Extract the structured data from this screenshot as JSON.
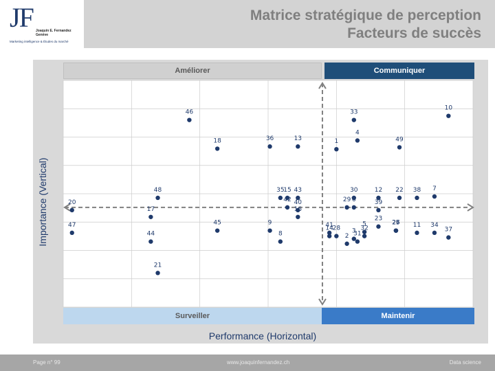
{
  "header": {
    "title_line1": "Matrice stratégique de perception",
    "title_line2": "Facteurs de succès"
  },
  "logo": {
    "mark": "JF",
    "name": "Joaquin E. Fernandez Genève",
    "tagline": "Marketing intelligence & Études du marché"
  },
  "quadrants": {
    "top_left": "Améliorer",
    "top_right": "Communiquer",
    "bottom_left": "Surveiller",
    "bottom_right": "Maintenir"
  },
  "footer": {
    "page": "Page n° 99",
    "url": "www.joaquinfernandez.ch",
    "right": "Data science"
  },
  "colors": {
    "point": "#1f3a6b",
    "divider": "#808080",
    "grid": "#cccccc"
  },
  "chart_data": {
    "type": "scatter",
    "xlabel": "Performance (Horizontal)",
    "ylabel": "Importance (Vertical)",
    "xlim": [
      0,
      11.7
    ],
    "ylim": [
      0,
      8.3
    ],
    "grid": true,
    "divider_x": 7.4,
    "divider_y": 3.65,
    "points": [
      {
        "label": "1",
        "x": 7.8,
        "y": 5.78
      },
      {
        "label": "2",
        "x": 8.1,
        "y": 2.32
      },
      {
        "label": "3",
        "x": 8.3,
        "y": 2.5
      },
      {
        "label": "4",
        "x": 8.4,
        "y": 6.1
      },
      {
        "label": "5",
        "x": 8.6,
        "y": 2.75
      },
      {
        "label": "6",
        "x": 8.3,
        "y": 3.65
      },
      {
        "label": "7",
        "x": 10.6,
        "y": 4.05
      },
      {
        "label": "8",
        "x": 6.2,
        "y": 2.4
      },
      {
        "label": "9",
        "x": 5.9,
        "y": 2.8
      },
      {
        "label": "10",
        "x": 11.0,
        "y": 7.0
      },
      {
        "label": "11",
        "x": 10.1,
        "y": 2.72
      },
      {
        "label": "12",
        "x": 9.0,
        "y": 4.0
      },
      {
        "label": "13",
        "x": 6.7,
        "y": 5.88
      },
      {
        "label": "14",
        "x": 7.6,
        "y": 2.6
      },
      {
        "label": "15",
        "x": 6.4,
        "y": 4.0
      },
      {
        "label": "16",
        "x": 6.7,
        "y": 3.3
      },
      {
        "label": "17",
        "x": 2.5,
        "y": 3.3
      },
      {
        "label": "18",
        "x": 4.4,
        "y": 5.8
      },
      {
        "label": "20",
        "x": 0.25,
        "y": 3.55
      },
      {
        "label": "21",
        "x": 2.7,
        "y": 1.25
      },
      {
        "label": "22",
        "x": 9.6,
        "y": 4.0
      },
      {
        "label": "23",
        "x": 9.0,
        "y": 2.95
      },
      {
        "label": "25",
        "x": 9.5,
        "y": 2.8
      },
      {
        "label": "26",
        "x": 9.5,
        "y": 2.8
      },
      {
        "label": "27",
        "x": 9.5,
        "y": 2.8
      },
      {
        "label": "28",
        "x": 7.8,
        "y": 2.6
      },
      {
        "label": "29",
        "x": 8.1,
        "y": 3.65
      },
      {
        "label": "30",
        "x": 8.3,
        "y": 4.0
      },
      {
        "label": "31",
        "x": 8.4,
        "y": 2.4
      },
      {
        "label": "32",
        "x": 8.6,
        "y": 2.6
      },
      {
        "label": "33",
        "x": 8.3,
        "y": 6.85
      },
      {
        "label": "34",
        "x": 10.6,
        "y": 2.72
      },
      {
        "label": "35",
        "x": 6.2,
        "y": 4.0
      },
      {
        "label": "36",
        "x": 5.9,
        "y": 5.88
      },
      {
        "label": "37",
        "x": 11.0,
        "y": 2.55
      },
      {
        "label": "38",
        "x": 10.1,
        "y": 4.0
      },
      {
        "label": "39",
        "x": 9.0,
        "y": 3.55
      },
      {
        "label": "40",
        "x": 6.7,
        "y": 3.55
      },
      {
        "label": "41",
        "x": 7.6,
        "y": 2.72
      },
      {
        "label": "42",
        "x": 6.4,
        "y": 3.65
      },
      {
        "label": "43",
        "x": 6.7,
        "y": 4.0
      },
      {
        "label": "44",
        "x": 2.5,
        "y": 2.4
      },
      {
        "label": "45",
        "x": 4.4,
        "y": 2.8
      },
      {
        "label": "46",
        "x": 3.6,
        "y": 6.85
      },
      {
        "label": "47",
        "x": 0.25,
        "y": 2.72
      },
      {
        "label": "48",
        "x": 2.7,
        "y": 4.0
      },
      {
        "label": "49",
        "x": 9.6,
        "y": 5.85
      }
    ]
  }
}
